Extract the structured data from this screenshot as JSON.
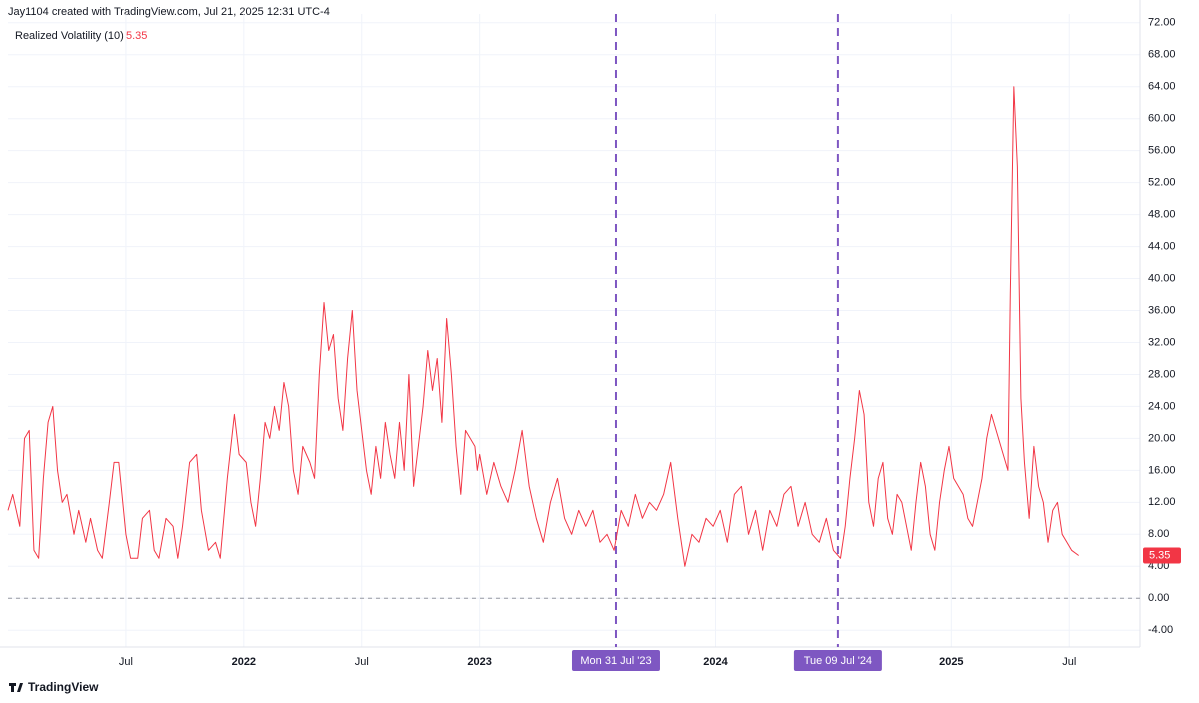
{
  "chart_data": {
    "type": "line",
    "title": "Jay1104 created with TradingView.com, Jul 21, 2025 12:31 UTC-4",
    "footer": "TradingView",
    "series": [
      {
        "name": "Realized Volatility (10)",
        "color": "#f23645",
        "last_label": "5.35",
        "values": [
          11,
          13,
          9,
          20,
          21,
          6,
          5,
          15,
          22,
          24,
          16,
          12,
          13,
          8,
          11,
          7,
          10,
          6,
          5,
          12,
          17,
          17,
          8,
          5,
          5,
          10,
          11,
          6,
          5,
          10,
          9,
          5,
          9,
          17,
          18,
          11,
          6,
          7,
          5,
          15,
          23,
          18,
          17,
          12,
          9,
          15,
          22,
          20,
          24,
          21,
          27,
          24,
          16,
          13,
          19,
          17,
          15,
          28,
          37,
          31,
          33,
          25,
          21,
          30,
          36,
          26,
          21,
          16,
          13,
          19,
          15,
          22,
          18,
          15,
          22,
          16,
          28,
          14,
          24,
          31,
          26,
          30,
          22,
          35,
          28,
          19,
          13,
          21,
          20,
          19,
          16,
          18,
          13,
          17,
          14,
          12,
          16,
          21,
          14,
          10,
          7,
          12,
          15,
          10,
          8,
          11,
          9,
          11,
          7,
          8,
          6,
          11,
          9,
          13,
          10,
          12,
          11,
          13,
          17,
          10,
          4,
          8,
          7,
          10,
          9,
          11,
          7,
          13,
          14,
          8,
          11,
          6,
          11,
          9,
          13,
          14,
          9,
          12,
          8,
          7,
          10,
          6,
          5,
          9,
          15,
          20,
          26,
          23,
          12,
          9,
          15,
          17,
          10,
          8,
          13,
          12,
          9,
          6,
          12,
          17,
          14,
          8,
          6,
          12,
          16,
          19,
          15,
          14,
          13,
          10,
          9,
          12,
          15,
          20,
          23,
          16,
          38,
          64,
          54,
          25,
          17,
          10,
          19,
          14,
          12,
          7,
          11,
          12,
          8,
          7,
          6,
          5.35
        ]
      }
    ],
    "x": [
      2021.0,
      2021.02,
      2021.05,
      2021.07,
      2021.09,
      2021.11,
      2021.13,
      2021.15,
      2021.17,
      2021.19,
      2021.21,
      2021.23,
      2021.25,
      2021.28,
      2021.3,
      2021.33,
      2021.35,
      2021.38,
      2021.4,
      2021.43,
      2021.45,
      2021.47,
      2021.5,
      2021.52,
      2021.55,
      2021.57,
      2021.6,
      2021.62,
      2021.64,
      2021.67,
      2021.7,
      2021.72,
      2021.74,
      2021.77,
      2021.8,
      2021.82,
      2021.85,
      2021.88,
      2021.9,
      2021.93,
      2021.96,
      2021.98,
      2022.01,
      2022.03,
      2022.05,
      2022.07,
      2022.09,
      2022.11,
      2022.13,
      2022.15,
      2022.17,
      2022.19,
      2022.21,
      2022.23,
      2022.25,
      2022.28,
      2022.3,
      2022.32,
      2022.34,
      2022.36,
      2022.38,
      2022.4,
      2022.42,
      2022.44,
      2022.46,
      2022.48,
      2022.5,
      2022.52,
      2022.54,
      2022.56,
      2022.58,
      2022.6,
      2022.62,
      2022.64,
      2022.66,
      2022.68,
      2022.7,
      2022.72,
      2022.76,
      2022.78,
      2022.8,
      2022.82,
      2022.84,
      2022.86,
      2022.88,
      2022.9,
      2022.92,
      2022.94,
      2022.96,
      2022.98,
      2022.99,
      2023.0,
      2023.03,
      2023.06,
      2023.09,
      2023.12,
      2023.15,
      2023.18,
      2023.21,
      2023.24,
      2023.27,
      2023.3,
      2023.33,
      2023.36,
      2023.39,
      2023.42,
      2023.45,
      2023.48,
      2023.51,
      2023.54,
      2023.57,
      2023.6,
      2023.63,
      2023.66,
      2023.69,
      2023.72,
      2023.75,
      2023.78,
      2023.81,
      2023.84,
      2023.87,
      2023.9,
      2023.93,
      2023.96,
      2023.99,
      2024.02,
      2024.05,
      2024.08,
      2024.11,
      2024.14,
      2024.17,
      2024.2,
      2024.23,
      2024.26,
      2024.29,
      2024.32,
      2024.35,
      2024.38,
      2024.41,
      2024.44,
      2024.47,
      2024.5,
      2024.53,
      2024.55,
      2024.57,
      2024.59,
      2024.61,
      2024.63,
      2024.65,
      2024.67,
      2024.69,
      2024.71,
      2024.73,
      2024.75,
      2024.77,
      2024.79,
      2024.81,
      2024.83,
      2024.85,
      2024.87,
      2024.89,
      2024.91,
      2024.93,
      2024.95,
      2024.97,
      2024.99,
      2025.01,
      2025.03,
      2025.05,
      2025.07,
      2025.09,
      2025.11,
      2025.13,
      2025.15,
      2025.17,
      2025.24,
      2025.25,
      2025.265,
      2025.28,
      2025.295,
      2025.31,
      2025.33,
      2025.35,
      2025.37,
      2025.39,
      2025.41,
      2025.43,
      2025.45,
      2025.47,
      2025.49,
      2025.51,
      2025.54
    ],
    "xlim": [
      2021.0,
      2025.8
    ],
    "xticks": [
      {
        "value": 2021.5,
        "label": "Jul"
      },
      {
        "value": 2022,
        "label": "2022"
      },
      {
        "value": 2022.5,
        "label": "Jul"
      },
      {
        "value": 2023,
        "label": "2023"
      },
      {
        "value": 2024,
        "label": "2024"
      },
      {
        "value": 2025,
        "label": "2025"
      },
      {
        "value": 2025.5,
        "label": "Jul"
      }
    ],
    "ylim": [
      -6.1,
      73.1
    ],
    "yticks": [
      {
        "value": -4,
        "label": "-4.00"
      },
      {
        "value": 0,
        "label": "0.00"
      },
      {
        "value": 4,
        "label": "4.00"
      },
      {
        "value": 8,
        "label": "8.00"
      },
      {
        "value": 12,
        "label": "12.00"
      },
      {
        "value": 16,
        "label": "16.00"
      },
      {
        "value": 20,
        "label": "20.00"
      },
      {
        "value": 24,
        "label": "24.00"
      },
      {
        "value": 28,
        "label": "28.00"
      },
      {
        "value": 32,
        "label": "32.00"
      },
      {
        "value": 36,
        "label": "36.00"
      },
      {
        "value": 40,
        "label": "40.00"
      },
      {
        "value": 44,
        "label": "44.00"
      },
      {
        "value": 48,
        "label": "48.00"
      },
      {
        "value": 52,
        "label": "52.00"
      },
      {
        "value": 56,
        "label": "56.00"
      },
      {
        "value": 60,
        "label": "60.00"
      },
      {
        "value": 64,
        "label": "64.00"
      },
      {
        "value": 68,
        "label": "68.00"
      },
      {
        "value": 72,
        "label": "72.00"
      }
    ],
    "grid": true,
    "reference_lines": [
      {
        "value": 0
      }
    ],
    "vlines": [
      {
        "value": 2023.578,
        "label": "Mon 31 Jul '23"
      },
      {
        "value": 2024.519,
        "label": "Tue 09 Jul '24"
      }
    ],
    "vline_color": "#7e57c2"
  }
}
